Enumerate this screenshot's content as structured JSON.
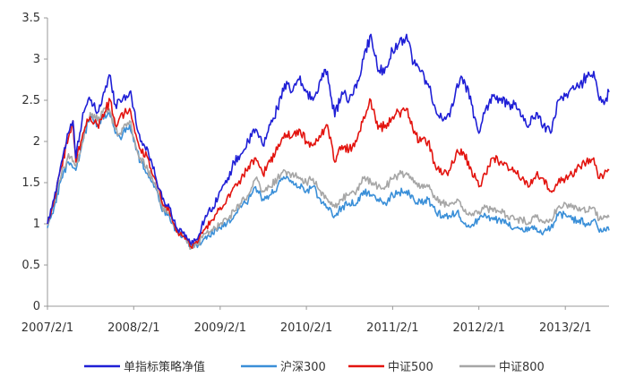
{
  "chart_data": {
    "type": "line",
    "title": "",
    "xlabel": "",
    "ylabel": "",
    "x_axis": {
      "type": "date",
      "range": [
        "2007-02-01",
        "2013-08-05"
      ],
      "tick_labels": [
        "2007/2/1",
        "2008/2/1",
        "2009/2/1",
        "2010/2/1",
        "2011/2/1",
        "2012/2/1",
        "2013/2/1"
      ],
      "tick_dates": [
        "2007-02-01",
        "2008-02-01",
        "2009-02-01",
        "2010-02-01",
        "2011-02-01",
        "2012-02-01",
        "2013-02-01"
      ]
    },
    "y_axis": {
      "range": [
        0,
        3.5
      ],
      "ticks": [
        0,
        0.5,
        1,
        1.5,
        2,
        2.5,
        3,
        3.5
      ],
      "tick_labels": [
        "0",
        "0.5",
        "1",
        "1.5",
        "2",
        "2.5",
        "3",
        "3.5"
      ]
    },
    "grid": false,
    "legend_position": "bottom",
    "series": [
      {
        "name": "单指标策略净值",
        "color": "#1f1fd6",
        "x": [
          "2007-02-01",
          "2007-03-01",
          "2007-04-01",
          "2007-05-01",
          "2007-05-20",
          "2007-06-01",
          "2007-07-01",
          "2007-08-01",
          "2007-09-01",
          "2007-10-01",
          "2007-10-25",
          "2007-11-15",
          "2007-12-05",
          "2008-01-15",
          "2008-02-01",
          "2008-03-01",
          "2008-04-01",
          "2008-05-01",
          "2008-06-01",
          "2008-07-01",
          "2008-08-01",
          "2008-09-01",
          "2008-10-01",
          "2008-11-01",
          "2008-12-01",
          "2009-01-01",
          "2009-02-01",
          "2009-03-01",
          "2009-04-01",
          "2009-05-01",
          "2009-06-01",
          "2009-07-01",
          "2009-08-01",
          "2009-09-01",
          "2009-10-01",
          "2009-11-01",
          "2009-12-01",
          "2010-01-01",
          "2010-02-01",
          "2010-03-01",
          "2010-04-01",
          "2010-05-01",
          "2010-06-01",
          "2010-07-01",
          "2010-08-01",
          "2010-09-01",
          "2010-10-01",
          "2010-11-01",
          "2010-12-01",
          "2011-01-01",
          "2011-02-01",
          "2011-03-01",
          "2011-04-01",
          "2011-05-01",
          "2011-06-01",
          "2011-07-01",
          "2011-08-01",
          "2011-09-01",
          "2011-10-01",
          "2011-11-01",
          "2011-12-01",
          "2012-01-01",
          "2012-02-01",
          "2012-03-01",
          "2012-04-01",
          "2012-05-01",
          "2012-06-01",
          "2012-07-01",
          "2012-08-01",
          "2012-09-01",
          "2012-10-01",
          "2012-11-01",
          "2012-12-01",
          "2013-01-01",
          "2013-02-01",
          "2013-03-01",
          "2013-04-01",
          "2013-05-01",
          "2013-06-01",
          "2013-06-25",
          "2013-07-15",
          "2013-08-05"
        ],
        "y": [
          1.0,
          1.3,
          1.75,
          2.1,
          2.25,
          1.8,
          2.35,
          2.5,
          2.35,
          2.6,
          2.8,
          2.45,
          2.5,
          2.6,
          2.4,
          2.0,
          1.9,
          1.6,
          1.3,
          1.2,
          0.95,
          0.9,
          0.75,
          0.85,
          1.1,
          1.2,
          1.4,
          1.5,
          1.75,
          1.85,
          2.0,
          2.15,
          1.95,
          2.2,
          2.4,
          2.7,
          2.6,
          2.75,
          2.6,
          2.5,
          2.75,
          2.85,
          2.3,
          2.6,
          2.5,
          2.65,
          3.0,
          3.3,
          2.85,
          2.9,
          3.1,
          3.2,
          3.3,
          2.95,
          2.85,
          2.7,
          2.4,
          2.25,
          2.3,
          2.7,
          2.75,
          2.45,
          2.1,
          2.4,
          2.55,
          2.5,
          2.45,
          2.45,
          2.3,
          2.2,
          2.35,
          2.2,
          2.1,
          2.5,
          2.55,
          2.65,
          2.65,
          2.8,
          2.85,
          2.5,
          2.45,
          2.6
        ]
      },
      {
        "name": "沪深300",
        "color": "#3a8fd8",
        "x": [
          "2007-02-01",
          "2007-03-01",
          "2007-04-01",
          "2007-05-01",
          "2007-06-01",
          "2007-07-01",
          "2007-08-01",
          "2007-09-01",
          "2007-10-01",
          "2007-10-25",
          "2007-11-15",
          "2007-12-05",
          "2008-01-15",
          "2008-02-01",
          "2008-03-01",
          "2008-04-01",
          "2008-05-01",
          "2008-06-01",
          "2008-07-01",
          "2008-08-01",
          "2008-09-01",
          "2008-10-01",
          "2008-11-01",
          "2008-12-01",
          "2009-01-01",
          "2009-02-01",
          "2009-03-01",
          "2009-04-01",
          "2009-05-01",
          "2009-06-01",
          "2009-07-01",
          "2009-08-01",
          "2009-09-01",
          "2009-10-01",
          "2009-11-01",
          "2009-12-01",
          "2010-01-01",
          "2010-02-01",
          "2010-03-01",
          "2010-04-01",
          "2010-05-01",
          "2010-06-01",
          "2010-07-01",
          "2010-08-01",
          "2010-09-01",
          "2010-10-01",
          "2010-11-01",
          "2010-12-01",
          "2011-01-01",
          "2011-02-01",
          "2011-03-01",
          "2011-04-01",
          "2011-05-01",
          "2011-06-01",
          "2011-07-01",
          "2011-08-01",
          "2011-09-01",
          "2011-10-01",
          "2011-11-01",
          "2011-12-01",
          "2012-01-01",
          "2012-02-01",
          "2012-03-01",
          "2012-04-01",
          "2012-05-01",
          "2012-06-01",
          "2012-07-01",
          "2012-08-01",
          "2012-09-01",
          "2012-10-01",
          "2012-11-01",
          "2012-12-01",
          "2013-01-01",
          "2013-02-01",
          "2013-03-01",
          "2013-04-01",
          "2013-05-01",
          "2013-06-01",
          "2013-06-25",
          "2013-07-15",
          "2013-08-05"
        ],
        "y": [
          0.95,
          1.2,
          1.55,
          1.75,
          1.65,
          2.0,
          2.3,
          2.2,
          2.35,
          2.3,
          2.1,
          2.05,
          2.2,
          2.0,
          1.75,
          1.6,
          1.45,
          1.15,
          1.1,
          0.9,
          0.85,
          0.72,
          0.75,
          0.85,
          0.88,
          0.95,
          1.0,
          1.1,
          1.2,
          1.3,
          1.45,
          1.3,
          1.35,
          1.45,
          1.55,
          1.5,
          1.45,
          1.4,
          1.45,
          1.3,
          1.2,
          1.1,
          1.2,
          1.25,
          1.25,
          1.4,
          1.35,
          1.3,
          1.25,
          1.35,
          1.38,
          1.4,
          1.3,
          1.25,
          1.3,
          1.15,
          1.1,
          1.1,
          1.15,
          1.0,
          0.98,
          1.05,
          1.1,
          1.05,
          1.05,
          1.0,
          0.95,
          0.95,
          0.92,
          0.95,
          0.9,
          0.95,
          1.1,
          1.12,
          1.05,
          1.05,
          1.0,
          1.05,
          0.9,
          0.95,
          0.92
        ]
      },
      {
        "name": "中证500",
        "color": "#e3140f",
        "x": [
          "2007-02-01",
          "2007-03-01",
          "2007-04-01",
          "2007-05-01",
          "2007-05-20",
          "2007-06-01",
          "2007-07-01",
          "2007-08-01",
          "2007-09-01",
          "2007-10-01",
          "2007-10-25",
          "2007-11-15",
          "2007-12-05",
          "2008-01-15",
          "2008-02-01",
          "2008-03-01",
          "2008-04-01",
          "2008-05-01",
          "2008-06-01",
          "2008-07-01",
          "2008-08-01",
          "2008-09-01",
          "2008-10-01",
          "2008-11-01",
          "2008-12-01",
          "2009-01-01",
          "2009-02-01",
          "2009-03-01",
          "2009-04-01",
          "2009-05-01",
          "2009-06-01",
          "2009-07-01",
          "2009-08-01",
          "2009-09-01",
          "2009-10-01",
          "2009-11-01",
          "2009-12-01",
          "2010-01-01",
          "2010-02-01",
          "2010-03-01",
          "2010-04-01",
          "2010-05-01",
          "2010-06-01",
          "2010-07-01",
          "2010-08-01",
          "2010-09-01",
          "2010-10-01",
          "2010-11-01",
          "2010-12-01",
          "2011-01-01",
          "2011-02-01",
          "2011-03-01",
          "2011-04-01",
          "2011-05-01",
          "2011-06-01",
          "2011-07-01",
          "2011-08-01",
          "2011-09-01",
          "2011-10-01",
          "2011-11-01",
          "2011-12-01",
          "2012-01-01",
          "2012-02-01",
          "2012-03-01",
          "2012-04-01",
          "2012-05-01",
          "2012-06-01",
          "2012-07-01",
          "2012-08-01",
          "2012-09-01",
          "2012-10-01",
          "2012-11-01",
          "2012-12-01",
          "2013-01-01",
          "2013-02-01",
          "2013-03-01",
          "2013-04-01",
          "2013-05-01",
          "2013-06-01",
          "2013-06-25",
          "2013-07-15",
          "2013-08-05"
        ],
        "y": [
          1.0,
          1.3,
          1.7,
          2.05,
          2.25,
          1.75,
          2.1,
          2.3,
          2.2,
          2.35,
          2.5,
          2.2,
          2.3,
          2.4,
          2.2,
          1.9,
          1.8,
          1.55,
          1.25,
          1.15,
          0.9,
          0.85,
          0.72,
          0.8,
          0.95,
          1.05,
          1.2,
          1.3,
          1.45,
          1.55,
          1.7,
          1.8,
          1.6,
          1.75,
          1.9,
          2.1,
          2.05,
          2.15,
          2.0,
          1.95,
          2.05,
          2.2,
          1.75,
          1.95,
          1.9,
          2.0,
          2.3,
          2.5,
          2.15,
          2.2,
          2.3,
          2.35,
          2.4,
          2.1,
          2.0,
          2.0,
          1.7,
          1.6,
          1.65,
          1.9,
          1.85,
          1.65,
          1.45,
          1.6,
          1.8,
          1.75,
          1.7,
          1.65,
          1.55,
          1.45,
          1.6,
          1.55,
          1.4,
          1.5,
          1.55,
          1.6,
          1.7,
          1.75,
          1.8,
          1.55,
          1.6,
          1.65
        ]
      },
      {
        "name": "中证800",
        "color": "#a6a6a6",
        "x": [
          "2007-02-01",
          "2007-03-01",
          "2007-04-01",
          "2007-05-01",
          "2007-06-01",
          "2007-07-01",
          "2007-08-01",
          "2007-09-01",
          "2007-10-01",
          "2007-10-25",
          "2007-11-15",
          "2007-12-05",
          "2008-01-15",
          "2008-02-01",
          "2008-03-01",
          "2008-04-01",
          "2008-05-01",
          "2008-06-01",
          "2008-07-01",
          "2008-08-01",
          "2008-09-01",
          "2008-10-01",
          "2008-11-01",
          "2008-12-01",
          "2009-01-01",
          "2009-02-01",
          "2009-03-01",
          "2009-04-01",
          "2009-05-01",
          "2009-06-01",
          "2009-07-01",
          "2009-08-01",
          "2009-09-01",
          "2009-10-01",
          "2009-11-01",
          "2009-12-01",
          "2010-01-01",
          "2010-02-01",
          "2010-03-01",
          "2010-04-01",
          "2010-05-01",
          "2010-06-01",
          "2010-07-01",
          "2010-08-01",
          "2010-09-01",
          "2010-10-01",
          "2010-11-01",
          "2010-12-01",
          "2011-01-01",
          "2011-02-01",
          "2011-03-01",
          "2011-04-01",
          "2011-05-01",
          "2011-06-01",
          "2011-07-01",
          "2011-08-01",
          "2011-09-01",
          "2011-10-01",
          "2011-11-01",
          "2011-12-01",
          "2012-01-01",
          "2012-02-01",
          "2012-03-01",
          "2012-04-01",
          "2012-05-01",
          "2012-06-01",
          "2012-07-01",
          "2012-08-01",
          "2012-09-01",
          "2012-10-01",
          "2012-11-01",
          "2012-12-01",
          "2013-01-01",
          "2013-02-01",
          "2013-03-01",
          "2013-04-01",
          "2013-05-01",
          "2013-06-01",
          "2013-06-25",
          "2013-07-15",
          "2013-08-05"
        ],
        "y": [
          0.98,
          1.25,
          1.6,
          1.85,
          1.7,
          2.05,
          2.35,
          2.25,
          2.4,
          2.35,
          2.15,
          2.1,
          2.25,
          2.05,
          1.8,
          1.65,
          1.5,
          1.2,
          1.12,
          0.92,
          0.86,
          0.7,
          0.76,
          0.88,
          0.92,
          1.0,
          1.05,
          1.15,
          1.25,
          1.35,
          1.55,
          1.4,
          1.45,
          1.55,
          1.65,
          1.6,
          1.55,
          1.5,
          1.55,
          1.4,
          1.3,
          1.2,
          1.3,
          1.35,
          1.4,
          1.55,
          1.5,
          1.45,
          1.45,
          1.55,
          1.6,
          1.62,
          1.5,
          1.45,
          1.45,
          1.3,
          1.25,
          1.25,
          1.3,
          1.15,
          1.1,
          1.15,
          1.2,
          1.15,
          1.15,
          1.1,
          1.05,
          1.05,
          1.02,
          1.08,
          1.03,
          1.05,
          1.2,
          1.25,
          1.2,
          1.2,
          1.15,
          1.2,
          1.05,
          1.1,
          1.08
        ]
      }
    ]
  }
}
